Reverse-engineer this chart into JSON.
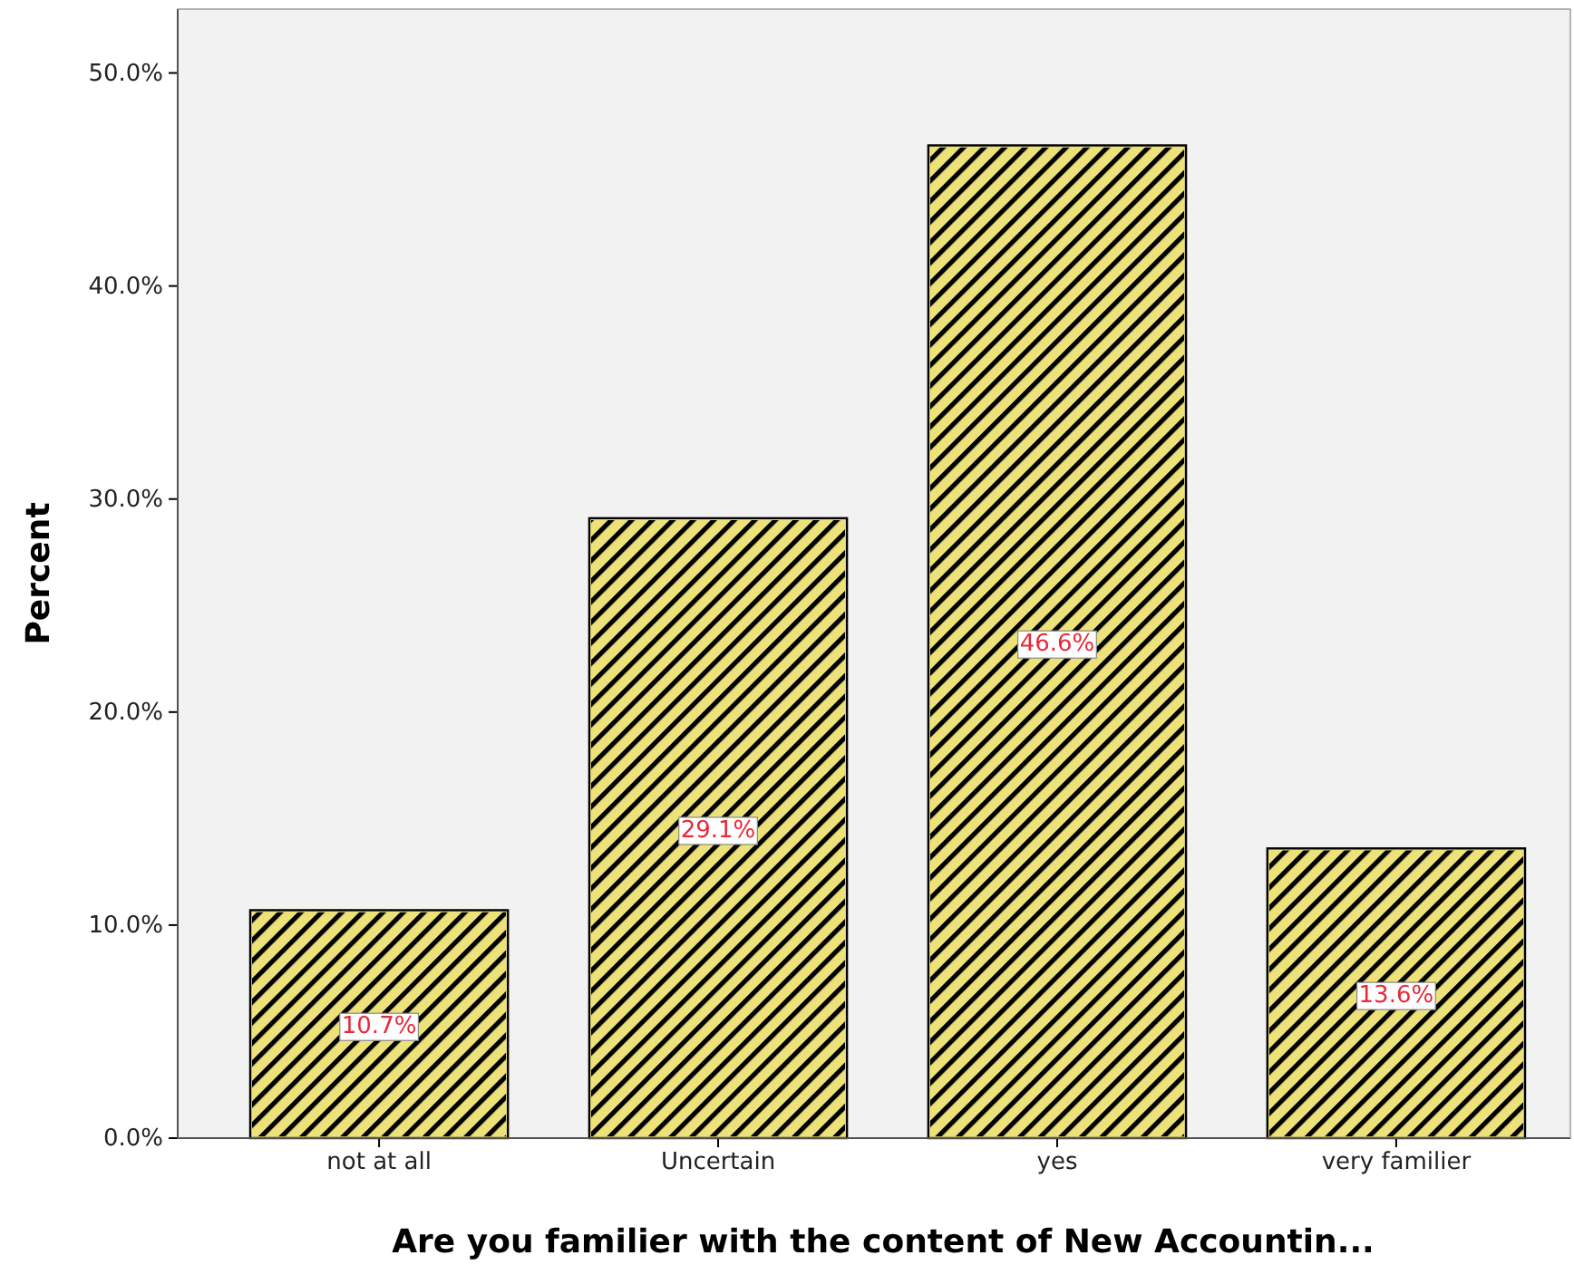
{
  "chart_data": {
    "type": "bar",
    "xlabel": "Are you familier with the content of New Accountin...",
    "ylabel": "Percent",
    "categories": [
      "not at all",
      "Uncertain",
      "yes",
      "very familier"
    ],
    "values": [
      10.7,
      29.1,
      46.6,
      13.6
    ],
    "value_labels": [
      "10.7%",
      "29.1%",
      "46.6%",
      "13.6%"
    ],
    "color": "#ede27a",
    "ylim": [
      0,
      53
    ],
    "yticks": [
      {
        "value": 0,
        "label": "0.0%"
      },
      {
        "value": 10,
        "label": "10.0%"
      },
      {
        "value": 20,
        "label": "20.0%"
      },
      {
        "value": 30,
        "label": "30.0%"
      },
      {
        "value": 40,
        "label": "40.0%"
      },
      {
        "value": 50,
        "label": "50.0%"
      }
    ],
    "grid": false
  }
}
